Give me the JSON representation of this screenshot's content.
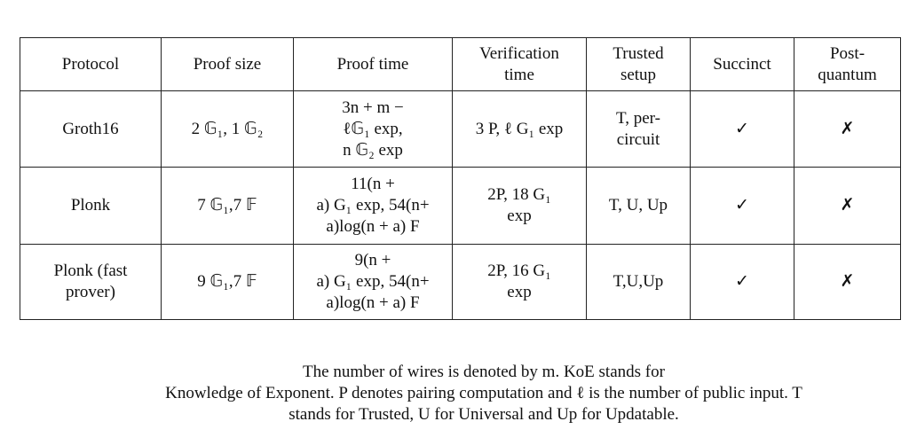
{
  "table": {
    "header": [
      "Protocol",
      "Proof size",
      "Proof time",
      [
        "Verification",
        "time"
      ],
      [
        "Trusted",
        "setup"
      ],
      "Succinct",
      [
        "Post-",
        "quantum"
      ]
    ],
    "rows": [
      [
        "Groth16",
        "2 𝔾₁, 1 𝔾₂",
        [
          "3n + m −",
          "ℓ𝔾₁ exp,",
          "n 𝔾₂ exp"
        ],
        "3 P, ℓ G₁ exp",
        [
          "T, per-",
          "circuit"
        ],
        "✓",
        "✗"
      ],
      [
        "Plonk",
        "7 𝔾₁,7 𝔽",
        [
          "11(n +",
          "a) G₁ exp, 54(n+",
          "a)log(n + a) F"
        ],
        [
          "2P, 18 G₁",
          "exp"
        ],
        "T, U, Up",
        "✓",
        "✗"
      ],
      [
        [
          "Plonk (fast",
          "prover)"
        ],
        "9 𝔾₁,7 𝔽",
        [
          "9(n +",
          "a) G₁ exp, 54(n+",
          "a)log(n + a) F"
        ],
        [
          "2P, 16 G₁",
          "exp"
        ],
        "T,U,Up",
        "✓",
        "✗"
      ]
    ]
  },
  "caption": [
    "The number of wires is denoted by m. KoE stands for",
    "Knowledge of Exponent. P denotes pairing computation and ℓ is the number of public input. T",
    "stands for Trusted, U for Universal and Up for Updatable."
  ]
}
